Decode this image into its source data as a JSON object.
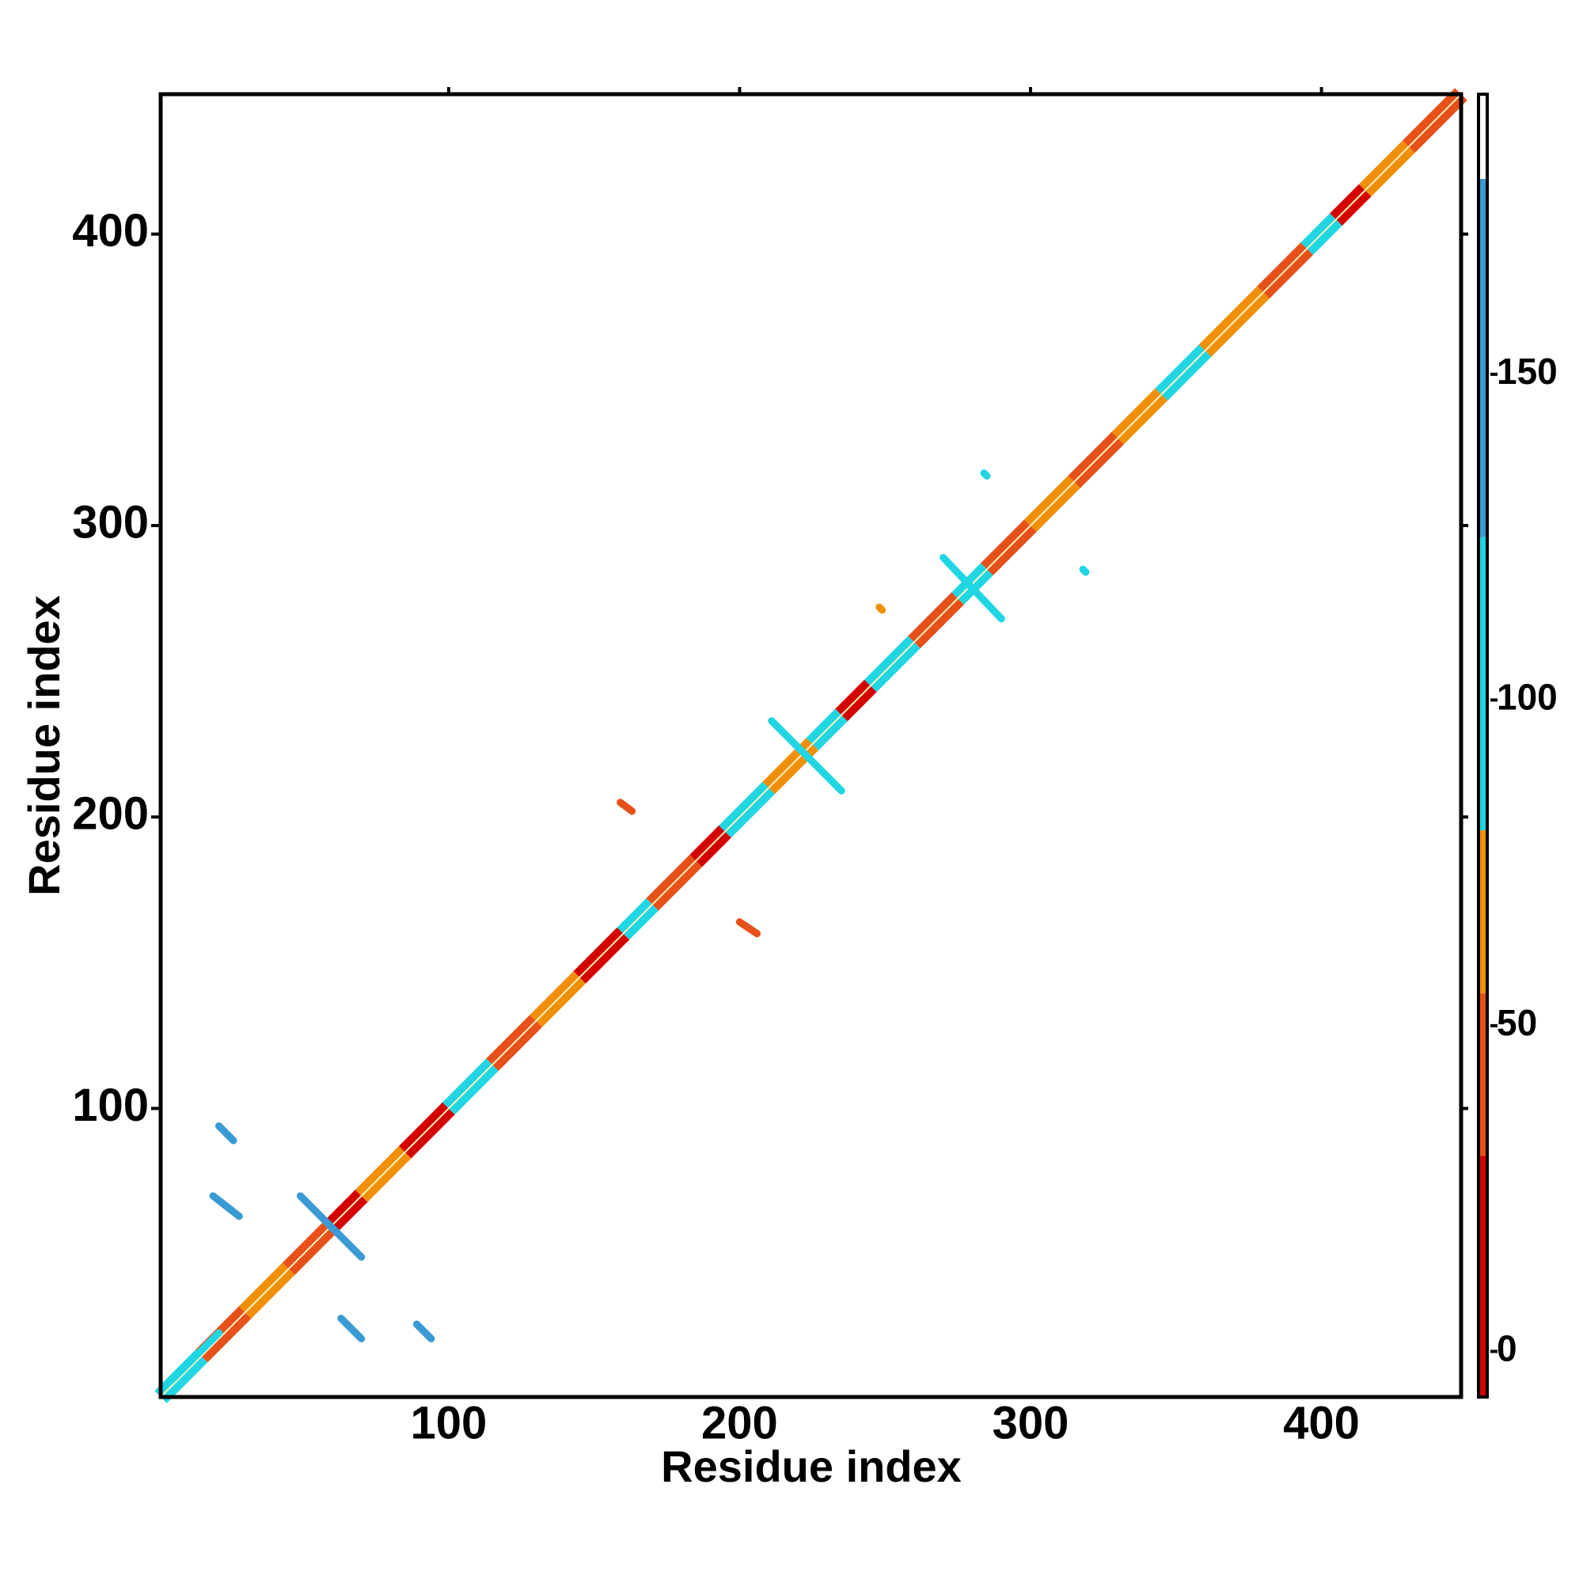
{
  "chart_data": {
    "type": "contact-map",
    "x_label": "Residue index",
    "y_label": "Residue index",
    "xlim": [
      1,
      448
    ],
    "ylim": [
      1,
      448
    ],
    "xticks": [
      100,
      200,
      300,
      400
    ],
    "yticks": [
      100,
      200,
      300,
      400
    ],
    "diagonal": [
      {
        "start": 1,
        "end": 15,
        "value": 100
      },
      {
        "start": 15,
        "end": 30,
        "value": 40
      },
      {
        "start": 30,
        "end": 45,
        "value": 60
      },
      {
        "start": 45,
        "end": 60,
        "value": 45
      },
      {
        "start": 60,
        "end": 70,
        "value": 10
      },
      {
        "start": 70,
        "end": 85,
        "value": 60
      },
      {
        "start": 85,
        "end": 100,
        "value": 20
      },
      {
        "start": 100,
        "end": 115,
        "value": 100
      },
      {
        "start": 115,
        "end": 130,
        "value": 50
      },
      {
        "start": 130,
        "end": 145,
        "value": 60
      },
      {
        "start": 145,
        "end": 160,
        "value": 20
      },
      {
        "start": 160,
        "end": 170,
        "value": 100
      },
      {
        "start": 170,
        "end": 185,
        "value": 50
      },
      {
        "start": 185,
        "end": 195,
        "value": 20
      },
      {
        "start": 195,
        "end": 210,
        "value": 100
      },
      {
        "start": 210,
        "end": 225,
        "value": 60
      },
      {
        "start": 225,
        "end": 235,
        "value": 100
      },
      {
        "start": 235,
        "end": 245,
        "value": 20
      },
      {
        "start": 245,
        "end": 260,
        "value": 100
      },
      {
        "start": 260,
        "end": 275,
        "value": 50
      },
      {
        "start": 275,
        "end": 285,
        "value": 100
      },
      {
        "start": 285,
        "end": 300,
        "value": 50
      },
      {
        "start": 300,
        "end": 315,
        "value": 60
      },
      {
        "start": 315,
        "end": 330,
        "value": 40
      },
      {
        "start": 330,
        "end": 345,
        "value": 60
      },
      {
        "start": 345,
        "end": 360,
        "value": 100
      },
      {
        "start": 360,
        "end": 380,
        "value": 60
      },
      {
        "start": 380,
        "end": 395,
        "value": 50
      },
      {
        "start": 395,
        "end": 405,
        "value": 100
      },
      {
        "start": 405,
        "end": 415,
        "value": 20
      },
      {
        "start": 415,
        "end": 430,
        "value": 60
      },
      {
        "start": 430,
        "end": 448,
        "value": 40
      }
    ],
    "contacts": [
      {
        "x": [
          21,
          26
        ],
        "y": [
          94,
          89
        ],
        "value": 140
      },
      {
        "x": [
          19,
          28
        ],
        "y": [
          70,
          63
        ],
        "value": 140
      },
      {
        "x": [
          49,
          70
        ],
        "y": [
          70,
          49
        ],
        "value": 145
      },
      {
        "x": [
          63,
          70
        ],
        "y": [
          28,
          21
        ],
        "value": 130
      },
      {
        "x": [
          89,
          94
        ],
        "y": [
          26,
          21
        ],
        "value": 140
      },
      {
        "x": [
          5,
          21
        ],
        "y": [
          7,
          23
        ],
        "value": 110
      },
      {
        "x": [
          159,
          163
        ],
        "y": [
          205,
          202
        ],
        "value": 40
      },
      {
        "x": [
          200,
          206
        ],
        "y": [
          164,
          160
        ],
        "value": 30
      },
      {
        "x": [
          211,
          235
        ],
        "y": [
          233,
          209
        ],
        "value": 110
      },
      {
        "x": [
          270,
          290
        ],
        "y": [
          289,
          268
        ],
        "value": 110
      },
      {
        "x": [
          284,
          285
        ],
        "y": [
          318,
          317
        ],
        "value": 110
      },
      {
        "x": [
          318,
          319
        ],
        "y": [
          285,
          284
        ],
        "value": 110
      },
      {
        "x": [
          248,
          249
        ],
        "y": [
          272,
          271
        ],
        "value": 60
      }
    ],
    "colorbar": {
      "lim": [
        -7,
        193
      ],
      "ticks": [
        0,
        50,
        100,
        150
      ],
      "bins": [
        -7,
        30,
        55,
        80,
        125,
        180,
        193
      ],
      "colors": [
        "#d40000",
        "#e8501a",
        "#f0900a",
        "#20d6e2",
        "#3a9ad4",
        "#ffffff"
      ]
    }
  }
}
